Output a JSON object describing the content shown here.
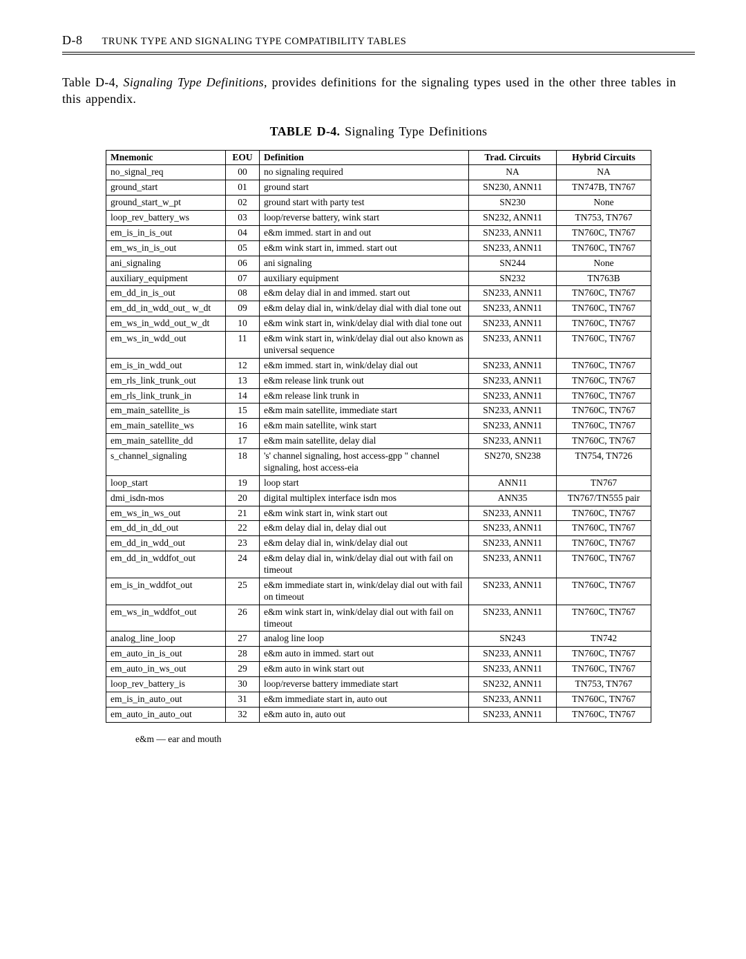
{
  "header": {
    "page_number": "D-8",
    "running_title": "TRUNK TYPE AND SIGNALING TYPE COMPATIBILITY TABLES"
  },
  "intro": "Table D-4, Signaling Type Definitions, provides definitions for the signaling types used in the other three tables in this appendix.",
  "table": {
    "caption_prefix": "TABLE D-4.",
    "caption_rest": " Signaling Type Definitions",
    "columns": {
      "mnemonic": "Mnemonic",
      "eou": "EOU",
      "definition": "Definition",
      "trad": "Trad. Circuits",
      "hybrid": "Hybrid Circuits"
    },
    "rows": [
      {
        "mn": "no_signal_req",
        "eou": "00",
        "def": "no signaling required",
        "trad": "NA",
        "hyb": "NA"
      },
      {
        "mn": "ground_start",
        "eou": "01",
        "def": "ground start",
        "trad": "SN230, ANN11",
        "hyb": "TN747B, TN767"
      },
      {
        "mn": "ground_start_w_pt",
        "eou": "02",
        "def": "ground start with party test",
        "trad": "SN230",
        "hyb": "None"
      },
      {
        "mn": "loop_rev_battery_ws",
        "eou": "03",
        "def": "loop/reverse battery, wink start",
        "trad": "SN232, ANN11",
        "hyb": "TN753, TN767"
      },
      {
        "mn": "em_is_in_is_out",
        "eou": "04",
        "def": "e&m immed. start in and out",
        "trad": "SN233, ANN11",
        "hyb": "TN760C, TN767"
      },
      {
        "mn": "em_ws_in_is_out",
        "eou": "05",
        "def": "e&m wink start in, immed. start out",
        "trad": "SN233, ANN11",
        "hyb": "TN760C, TN767"
      },
      {
        "mn": "ani_signaling",
        "eou": "06",
        "def": "ani signaling",
        "trad": "SN244",
        "hyb": "None"
      },
      {
        "mn": "auxiliary_equipment",
        "eou": "07",
        "def": "auxiliary equipment",
        "trad": "SN232",
        "hyb": "TN763B"
      },
      {
        "mn": "em_dd_in_is_out",
        "eou": "08",
        "def": "e&m delay dial in and immed. start out",
        "trad": "SN233, ANN11",
        "hyb": "TN760C, TN767"
      },
      {
        "mn": "em_dd_in_wdd_out_ w_dt",
        "eou": "09",
        "def": "e&m delay dial in, wink/delay dial with dial tone out",
        "trad": "SN233, ANN11",
        "hyb": "TN760C, TN767"
      },
      {
        "mn": "em_ws_in_wdd_out_w_dt",
        "eou": "10",
        "def": "e&m wink start in, wink/delay dial with dial tone out",
        "trad": "SN233, ANN11",
        "hyb": "TN760C, TN767"
      },
      {
        "mn": "em_ws_in_wdd_out",
        "eou": "11",
        "def": "e&m wink start in, wink/delay dial out also known as universal sequence",
        "trad": "SN233, ANN11",
        "hyb": "TN760C, TN767"
      },
      {
        "mn": "em_is_in_wdd_out",
        "eou": "12",
        "def": "e&m immed. start in, wink/delay dial out",
        "trad": "SN233, ANN11",
        "hyb": "TN760C, TN767"
      },
      {
        "mn": "em_rls_link_trunk_out",
        "eou": "13",
        "def": "e&m release link trunk out",
        "trad": "SN233, ANN11",
        "hyb": "TN760C, TN767"
      },
      {
        "mn": "em_rls_link_trunk_in",
        "eou": "14",
        "def": "e&m release link trunk in",
        "trad": "SN233, ANN11",
        "hyb": "TN760C, TN767"
      },
      {
        "mn": "em_main_satellite_is",
        "eou": "15",
        "def": "e&m main satellite, immediate start",
        "trad": "SN233, ANN11",
        "hyb": "TN760C, TN767"
      },
      {
        "mn": "em_main_satellite_ws",
        "eou": "16",
        "def": "e&m main satellite, wink start",
        "trad": "SN233, ANN11",
        "hyb": "TN760C, TN767"
      },
      {
        "mn": "em_main_satellite_dd",
        "eou": "17",
        "def": "e&m main satellite, delay dial",
        "trad": "SN233, ANN11",
        "hyb": "TN760C, TN767"
      },
      {
        "mn": "s_channel_signaling",
        "eou": "18",
        "def": "'s' channel signaling, host access-gpp \" channel signaling, host access-eia",
        "trad": "SN270, SN238",
        "hyb": "TN754, TN726"
      },
      {
        "mn": "loop_start",
        "eou": "19",
        "def": "loop start",
        "trad": "ANN11",
        "hyb": "TN767"
      },
      {
        "mn": "dmi_isdn-mos",
        "eou": "20",
        "def": "digital multiplex interface isdn mos",
        "trad": "ANN35",
        "hyb": "TN767/TN555 pair"
      },
      {
        "mn": "em_ws_in_ws_out",
        "eou": "21",
        "def": "e&m wink start in, wink start out",
        "trad": "SN233, ANN11",
        "hyb": "TN760C, TN767"
      },
      {
        "mn": "em_dd_in_dd_out",
        "eou": "22",
        "def": "e&m delay dial in, delay dial out",
        "trad": "SN233, ANN11",
        "hyb": "TN760C, TN767"
      },
      {
        "mn": "em_dd_in_wdd_out",
        "eou": "23",
        "def": "e&m delay dial in, wink/delay dial out",
        "trad": "SN233, ANN11",
        "hyb": "TN760C, TN767"
      },
      {
        "mn": "em_dd_in_wddfot_out",
        "eou": "24",
        "def": "e&m delay dial in, wink/delay dial out with fail on timeout",
        "trad": "SN233, ANN11",
        "hyb": "TN760C, TN767"
      },
      {
        "mn": "em_is_in_wddfot_out",
        "eou": "25",
        "def": "e&m immediate start in, wink/delay dial out with fail on timeout",
        "trad": "SN233, ANN11",
        "hyb": "TN760C, TN767"
      },
      {
        "mn": "em_ws_in_wddfot_out",
        "eou": "26",
        "def": "e&m wink start in, wink/delay dial out with fail on timeout",
        "trad": "SN233, ANN11",
        "hyb": "TN760C, TN767"
      },
      {
        "mn": "analog_line_loop",
        "eou": "27",
        "def": "analog line loop",
        "trad": "SN243",
        "hyb": "TN742"
      },
      {
        "mn": "em_auto_in_is_out",
        "eou": "28",
        "def": "e&m auto in immed. start out",
        "trad": "SN233, ANN11",
        "hyb": "TN760C, TN767"
      },
      {
        "mn": "em_auto_in_ws_out",
        "eou": "29",
        "def": "e&m auto in wink start out",
        "trad": "SN233, ANN11",
        "hyb": "TN760C, TN767"
      },
      {
        "mn": "loop_rev_battery_is",
        "eou": "30",
        "def": "loop/reverse battery immediate start",
        "trad": "SN232, ANN11",
        "hyb": "TN753, TN767"
      },
      {
        "mn": "em_is_in_auto_out",
        "eou": "31",
        "def": "e&m immediate start in, auto out",
        "trad": "SN233, ANN11",
        "hyb": "TN760C, TN767"
      },
      {
        "mn": "em_auto_in_auto_out",
        "eou": "32",
        "def": "e&m auto in, auto out",
        "trad": "SN233, ANN11",
        "hyb": "TN760C, TN767"
      }
    ]
  },
  "footnote": "e&m — ear and mouth"
}
